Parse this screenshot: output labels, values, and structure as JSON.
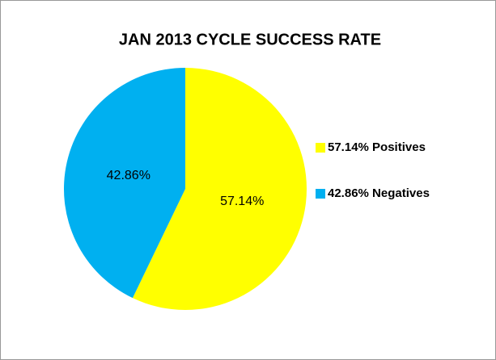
{
  "chart_data": {
    "type": "pie",
    "title": "JAN 2013 CYCLE SUCCESS RATE",
    "categories": [
      "57.14% Positives",
      "42.86% Negatives"
    ],
    "values": [
      57.14,
      42.86
    ],
    "value_labels": [
      "57.14%",
      "42.86%"
    ],
    "colors": [
      "#ffff00",
      "#00b0f0"
    ],
    "legend": "right"
  }
}
